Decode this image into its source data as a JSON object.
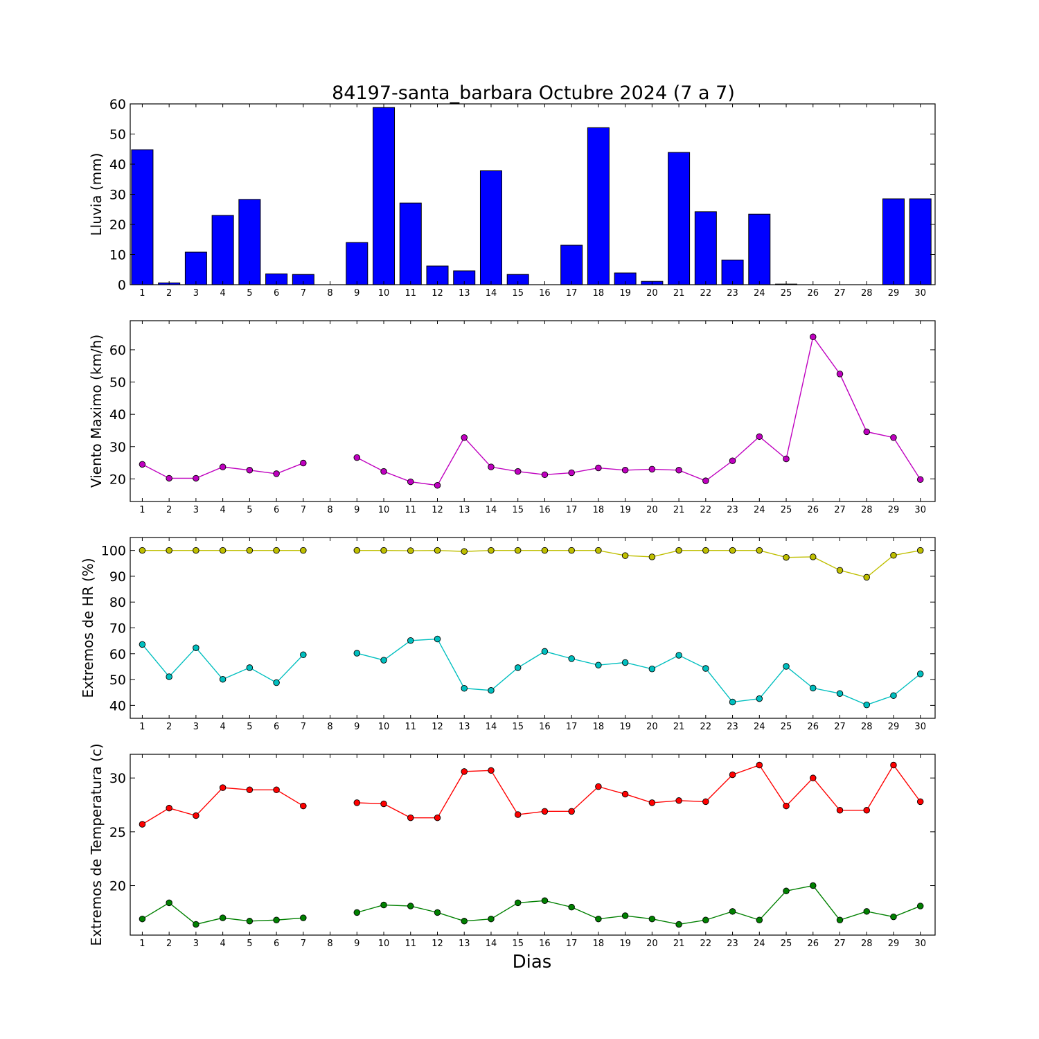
{
  "title": "84197-santa_barbara Octubre 2024  (7 a 7)",
  "xlabel": "Dias",
  "chart_data": [
    {
      "type": "bar",
      "ylabel": "Lluvia (mm)",
      "ylim": [
        0,
        60
      ],
      "yticks": [
        0,
        10,
        20,
        30,
        40,
        50,
        60
      ],
      "x": [
        1,
        2,
        3,
        4,
        5,
        6,
        7,
        8,
        9,
        10,
        11,
        12,
        13,
        14,
        15,
        16,
        17,
        18,
        19,
        20,
        21,
        22,
        23,
        24,
        25,
        26,
        27,
        28,
        29,
        30
      ],
      "values": [
        44.8,
        0.6,
        10.8,
        23,
        28.3,
        3.6,
        3.4,
        0,
        14,
        58.8,
        27.1,
        6.2,
        4.6,
        37.8,
        3.4,
        0,
        13.1,
        52.1,
        3.9,
        1.1,
        43.9,
        24.2,
        8.2,
        23.4,
        0.2,
        0,
        0,
        0,
        28.5,
        28.5
      ],
      "color": "#0000ff"
    },
    {
      "type": "line",
      "ylabel": "Viento Maximo (km/h)",
      "ylim": [
        13,
        69
      ],
      "yticks": [
        20,
        30,
        40,
        50,
        60
      ],
      "x": [
        1,
        2,
        3,
        4,
        5,
        6,
        7,
        8,
        9,
        10,
        11,
        12,
        13,
        14,
        15,
        16,
        17,
        18,
        19,
        20,
        21,
        22,
        23,
        24,
        25,
        26,
        27,
        28,
        29,
        30
      ],
      "series": [
        {
          "color": "#bf00bf",
          "values": [
            24.5,
            20.2,
            20.2,
            23.7,
            22.7,
            21.6,
            24.9,
            null,
            26.6,
            22.3,
            19.1,
            18,
            32.8,
            23.7,
            22.3,
            21.3,
            21.9,
            23.4,
            22.7,
            23,
            22.7,
            19.4,
            25.6,
            33.1,
            26.2,
            64,
            52.5,
            34.6,
            32.8,
            19.8
          ]
        }
      ]
    },
    {
      "type": "line",
      "ylabel": "Extremos de HR (%)",
      "ylim": [
        35,
        105
      ],
      "yticks": [
        40,
        50,
        60,
        70,
        80,
        90,
        100
      ],
      "x": [
        1,
        2,
        3,
        4,
        5,
        6,
        7,
        8,
        9,
        10,
        11,
        12,
        13,
        14,
        15,
        16,
        17,
        18,
        19,
        20,
        21,
        22,
        23,
        24,
        25,
        26,
        27,
        28,
        29,
        30
      ],
      "series": [
        {
          "color": "#bfbf00",
          "values": [
            100,
            100,
            100,
            100,
            100,
            100,
            100,
            null,
            100,
            100,
            99.9,
            100,
            99.6,
            100,
            100,
            100,
            100,
            100,
            98,
            97.5,
            100,
            100,
            100,
            100,
            97.3,
            97.5,
            92.3,
            89.6,
            98.1,
            100
          ]
        },
        {
          "color": "#00bfbf",
          "values": [
            63.6,
            51.1,
            62.3,
            50.1,
            54.6,
            48.8,
            59.6,
            null,
            60.2,
            57.5,
            65.1,
            65.7,
            46.6,
            45.8,
            54.6,
            60.9,
            58.1,
            55.6,
            56.6,
            54.1,
            59.4,
            54.3,
            41.3,
            42.6,
            55.1,
            46.7,
            44.6,
            40.2,
            43.8,
            52.2
          ]
        }
      ]
    },
    {
      "type": "line",
      "ylabel": "Extremos de Temperatura (c)",
      "ylim": [
        15.4,
        32.2
      ],
      "yticks": [
        20,
        25,
        30
      ],
      "x": [
        1,
        2,
        3,
        4,
        5,
        6,
        7,
        8,
        9,
        10,
        11,
        12,
        13,
        14,
        15,
        16,
        17,
        18,
        19,
        20,
        21,
        22,
        23,
        24,
        25,
        26,
        27,
        28,
        29,
        30
      ],
      "series": [
        {
          "color": "#ff0000",
          "values": [
            25.7,
            27.2,
            26.5,
            29.1,
            28.9,
            28.9,
            27.4,
            null,
            27.7,
            27.6,
            26.3,
            26.3,
            30.6,
            30.7,
            26.6,
            26.9,
            26.9,
            29.2,
            28.5,
            27.7,
            27.9,
            27.8,
            30.3,
            31.2,
            27.4,
            30,
            27,
            27,
            31.2,
            27.8
          ]
        },
        {
          "color": "#008000",
          "values": [
            16.9,
            18.4,
            16.4,
            17,
            16.7,
            16.8,
            17,
            null,
            17.5,
            18.2,
            18.1,
            17.5,
            16.7,
            16.9,
            18.4,
            18.6,
            18,
            16.9,
            17.2,
            16.9,
            16.4,
            16.8,
            17.6,
            16.8,
            19.5,
            20,
            16.8,
            17.6,
            17.1,
            18.1
          ]
        }
      ]
    }
  ]
}
